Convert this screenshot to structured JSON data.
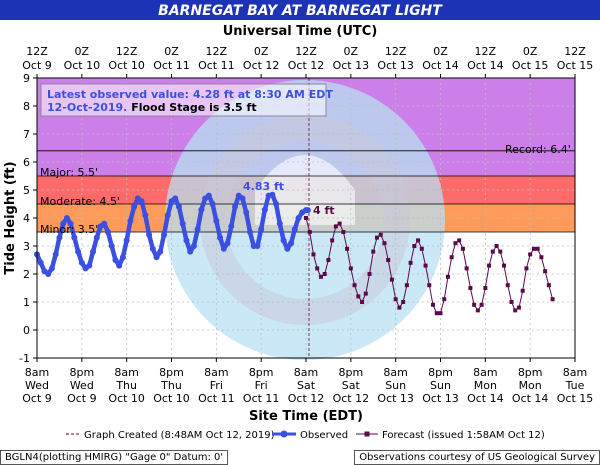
{
  "title": "BARNEGAT BAY AT BARNEGAT LIGHT",
  "top_axis_title": "Universal Time (UTC)",
  "bottom_axis_title": "Site Time (EDT)",
  "ylabel": "Tide Height (ft)",
  "top_ticks": [
    {
      "line1": "12Z",
      "line2": "Oct 9"
    },
    {
      "line1": "0Z",
      "line2": "Oct 10"
    },
    {
      "line1": "12Z",
      "line2": "Oct 10"
    },
    {
      "line1": "0Z",
      "line2": "Oct 11"
    },
    {
      "line1": "12Z",
      "line2": "Oct 11"
    },
    {
      "line1": "0Z",
      "line2": "Oct 12"
    },
    {
      "line1": "12Z",
      "line2": "Oct 12"
    },
    {
      "line1": "0Z",
      "line2": "Oct 13"
    },
    {
      "line1": "12Z",
      "line2": "Oct 13"
    },
    {
      "line1": "0Z",
      "line2": "Oct 14"
    },
    {
      "line1": "12Z",
      "line2": "Oct 14"
    },
    {
      "line1": "0Z",
      "line2": "Oct 15"
    },
    {
      "line1": "12Z",
      "line2": "Oct 15"
    }
  ],
  "bottom_ticks": [
    {
      "line1": "8am",
      "line2": "Wed",
      "line3": "Oct 9"
    },
    {
      "line1": "8pm",
      "line2": "Wed",
      "line3": "Oct 9"
    },
    {
      "line1": "8am",
      "line2": "Thu",
      "line3": "Oct 10"
    },
    {
      "line1": "8pm",
      "line2": "Thu",
      "line3": "Oct 10"
    },
    {
      "line1": "8am",
      "line2": "Fri",
      "line3": "Oct 11"
    },
    {
      "line1": "8pm",
      "line2": "Fri",
      "line3": "Oct 11"
    },
    {
      "line1": "8am",
      "line2": "Sat",
      "line3": "Oct 12"
    },
    {
      "line1": "8pm",
      "line2": "Sat",
      "line3": "Oct 12"
    },
    {
      "line1": "8am",
      "line2": "Sun",
      "line3": "Oct 13"
    },
    {
      "line1": "8pm",
      "line2": "Sun",
      "line3": "Oct 13"
    },
    {
      "line1": "8am",
      "line2": "Mon",
      "line3": "Oct 14"
    },
    {
      "line1": "8pm",
      "line2": "Mon",
      "line3": "Oct 14"
    },
    {
      "line1": "8am",
      "line2": "Tue",
      "line3": "Oct 15"
    }
  ],
  "y_ticks": [
    "-1",
    "0",
    "1",
    "2",
    "3",
    "4",
    "5",
    "6",
    "7",
    "8",
    "9"
  ],
  "info_box": {
    "line1": "Latest observed value: 4.28 ft at 8:30 AM EDT",
    "line2a": "12-Oct-2019.",
    "line2b": " Flood Stage is 3.5 ft"
  },
  "stage_labels": {
    "record": "Record: 6.4'",
    "major": "Major: 5.5'",
    "moderate": "Moderate: 4.5'",
    "minor": "Minor: 3.5'"
  },
  "annotations": {
    "obs_peak": "4.83 ft",
    "forecast_peak": "4 ft"
  },
  "legend": {
    "created": "Graph Created (8:48AM Oct 12, 2019)",
    "observed": "Observed",
    "forecast": "Forecast (issued 1:58AM Oct 12)"
  },
  "footer": {
    "left": "BGLN4(plotting HMIRG) \"Gage 0\" Datum: 0'",
    "right": "Observations courtesy of US Geological Survey"
  },
  "colors": {
    "title_bg": "#1c33b5",
    "observed": "#3b4fe0",
    "forecast": "#5a0a4a",
    "major": "#cc7fe8",
    "moderate": "#ff6a6a",
    "minor": "#ff9a5a",
    "action": "#ffc77a",
    "stage_line": "#000000",
    "watermark": "#b8e0f2"
  },
  "chart_data": {
    "type": "line",
    "title": "BARNEGAT BAY AT BARNEGAT LIGHT",
    "xlabel": "Site Time (EDT)",
    "ylabel": "Tide Height (ft)",
    "x_unit": "hours after 8am EDT Oct 9",
    "xlim": [
      0,
      144
    ],
    "ylim": [
      -1,
      9
    ],
    "flood_categories": {
      "record": 6.4,
      "major": 5.5,
      "moderate": 4.5,
      "minor": 3.5
    },
    "graph_created_x": 72.8,
    "latest_observed": {
      "x": 72.5,
      "value": 4.28
    },
    "series": [
      {
        "name": "Observed",
        "x": [
          0,
          1,
          2,
          3,
          4,
          5,
          6,
          7,
          8,
          9,
          10,
          11,
          12,
          13,
          14,
          15,
          16,
          17,
          18,
          19,
          20,
          21,
          22,
          23,
          24,
          25,
          26,
          27,
          28,
          29,
          30,
          31,
          32,
          33,
          34,
          35,
          36,
          37,
          38,
          39,
          40,
          41,
          42,
          43,
          44,
          45,
          46,
          47,
          48,
          49,
          50,
          51,
          52,
          53,
          54,
          55,
          56,
          57,
          58,
          59,
          60,
          61,
          62,
          63,
          64,
          65,
          66,
          67,
          68,
          69,
          70,
          71,
          72,
          72.5
        ],
        "values": [
          2.7,
          2.4,
          2.1,
          2.0,
          2.2,
          2.7,
          3.3,
          3.8,
          4.0,
          3.8,
          3.3,
          2.8,
          2.4,
          2.2,
          2.3,
          2.8,
          3.3,
          3.7,
          3.8,
          3.5,
          3.0,
          2.5,
          2.3,
          2.6,
          3.2,
          3.9,
          4.4,
          4.7,
          4.6,
          4.1,
          3.4,
          2.9,
          2.6,
          2.8,
          3.4,
          4.1,
          4.6,
          4.7,
          4.4,
          3.8,
          3.2,
          2.8,
          3.0,
          3.6,
          4.3,
          4.7,
          4.8,
          4.5,
          3.9,
          3.3,
          2.9,
          3.1,
          3.7,
          4.4,
          4.8,
          4.7,
          4.2,
          3.5,
          3.0,
          3.0,
          3.6,
          4.3,
          4.8,
          4.83,
          4.5,
          3.8,
          3.2,
          2.9,
          3.1,
          3.6,
          4.0,
          4.2,
          4.28,
          4.28
        ]
      },
      {
        "name": "Forecast (issued 1:58AM Oct 12)",
        "x": [
          72,
          73,
          74,
          75,
          76,
          77,
          78,
          79,
          80,
          81,
          82,
          83,
          84,
          85,
          86,
          87,
          88,
          89,
          90,
          91,
          92,
          93,
          94,
          95,
          96,
          97,
          98,
          99,
          100,
          101,
          102,
          103,
          104,
          105,
          106,
          107,
          108,
          109,
          110,
          111,
          112,
          113,
          114,
          115,
          116,
          117,
          118,
          119,
          120,
          121,
          122,
          123,
          124,
          125,
          126,
          127,
          128,
          129,
          130,
          131,
          132,
          133,
          134,
          135,
          136,
          137,
          138
        ],
        "values": [
          4.0,
          3.5,
          2.7,
          2.2,
          1.9,
          2.0,
          2.5,
          3.2,
          3.7,
          3.8,
          3.5,
          2.9,
          2.2,
          1.6,
          1.2,
          1.0,
          1.3,
          2.0,
          2.8,
          3.3,
          3.4,
          3.1,
          2.5,
          1.8,
          1.1,
          0.8,
          1.0,
          1.6,
          2.4,
          3.0,
          3.2,
          2.9,
          2.3,
          1.6,
          0.9,
          0.6,
          0.6,
          1.1,
          1.9,
          2.6,
          3.1,
          3.2,
          2.9,
          2.2,
          1.5,
          0.9,
          0.7,
          0.9,
          1.5,
          2.3,
          2.8,
          3.0,
          2.8,
          2.3,
          1.6,
          1.0,
          0.7,
          0.8,
          1.4,
          2.2,
          2.7,
          2.9,
          2.9,
          2.6,
          2.1,
          1.6,
          1.1
        ]
      }
    ]
  }
}
